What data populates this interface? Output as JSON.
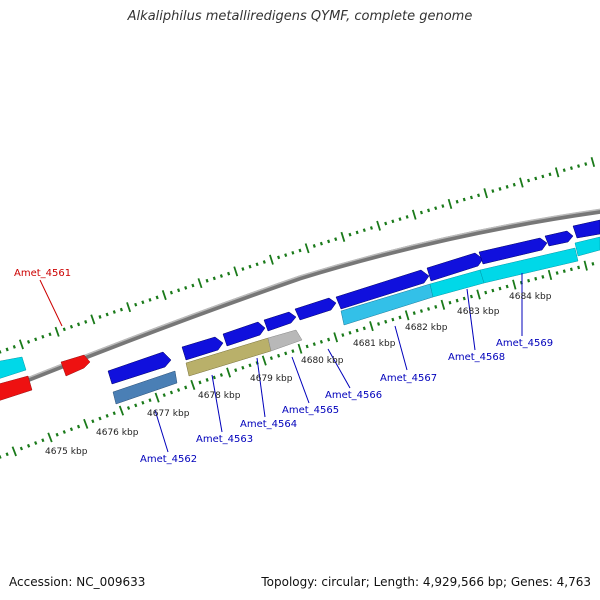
{
  "header": {
    "title": "Alkaliphilus metalliredigens QYMF, complete genome"
  },
  "footer": {
    "accession": "Accession: NC_009633",
    "stats": "Topology: circular; Length: 4,929,566 bp; Genes: 4,763"
  },
  "colors": {
    "forward_cds": "#1010dd",
    "reverse_cds": "#00d8e8",
    "reverse_cds_light": "#33c0e8",
    "highlight_red": "#ee1111",
    "steelblue_cds": "#4a7fb5",
    "khaki_cds": "#b9b06a",
    "grey_cds": "#b8b8b8",
    "backbone": "#888888",
    "tick": "#1a7a1a",
    "label_blue": "#0000bb",
    "label_red": "#cc0000"
  },
  "ticks": [
    {
      "label": "4675 kbp"
    },
    {
      "label": "4676 kbp"
    },
    {
      "label": "4677 kbp"
    },
    {
      "label": "4678 kbp"
    },
    {
      "label": "4679 kbp"
    },
    {
      "label": "4680 kbp"
    },
    {
      "label": "4681 kbp"
    },
    {
      "label": "4682 kbp"
    },
    {
      "label": "4683 kbp"
    },
    {
      "label": "4684 kbp"
    }
  ],
  "genes": [
    {
      "name": "Amet_4561"
    },
    {
      "name": "Amet_4562"
    },
    {
      "name": "Amet_4563"
    },
    {
      "name": "Amet_4564"
    },
    {
      "name": "Amet_4565"
    },
    {
      "name": "Amet_4566"
    },
    {
      "name": "Amet_4567"
    },
    {
      "name": "Amet_4568"
    },
    {
      "name": "Amet_4569"
    }
  ]
}
